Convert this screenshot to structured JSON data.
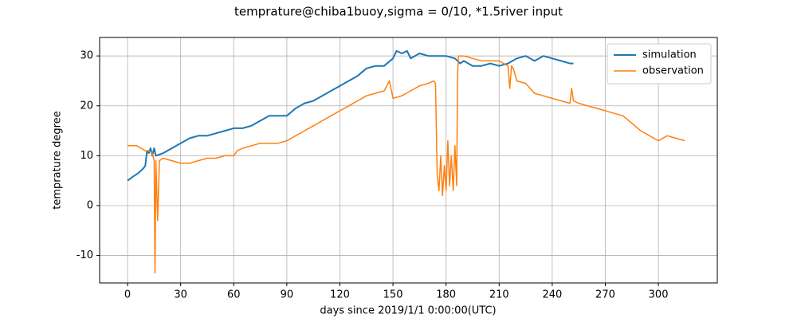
{
  "chart_data": {
    "type": "line",
    "title": "temprature@chiba1buoy,sigma = 0/10, *1.5river input",
    "x_label": "days since 2019/1/1 0:00:00(UTC)",
    "y_label": "temprature degree",
    "xlim": [
      -15.8,
      333.3
    ],
    "ylim": [
      -15.5,
      33.7
    ],
    "xticks": [
      0,
      30,
      60,
      90,
      120,
      150,
      180,
      210,
      240,
      270,
      300
    ],
    "yticks": [
      -10,
      0,
      10,
      20,
      30
    ],
    "grid": true,
    "legend": "upper right",
    "series": [
      {
        "name": "simulation",
        "color": "#1f77b4",
        "width": 2,
        "x": [
          0,
          3,
          6,
          9,
          10,
          11,
          12,
          13,
          14,
          15,
          16,
          20,
          25,
          30,
          35,
          40,
          45,
          50,
          55,
          60,
          65,
          70,
          75,
          80,
          85,
          90,
          95,
          100,
          105,
          110,
          115,
          120,
          125,
          130,
          135,
          140,
          145,
          150,
          152,
          155,
          158,
          160,
          165,
          170,
          175,
          180,
          185,
          188,
          190,
          195,
          200,
          205,
          210,
          215,
          220,
          225,
          230,
          235,
          240,
          245,
          250,
          252
        ],
        "values": [
          5,
          5.8,
          6.5,
          7.5,
          8,
          11,
          10.5,
          11.5,
          10,
          11.5,
          10,
          10.5,
          11.5,
          12.5,
          13.5,
          14,
          14,
          14.5,
          15,
          15.5,
          15.5,
          16,
          17,
          18,
          18,
          18,
          19.5,
          20.5,
          21,
          22,
          23,
          24,
          25,
          26,
          27.5,
          28,
          28,
          29.5,
          31,
          30.5,
          31,
          29.5,
          30.5,
          30,
          30,
          30,
          29.5,
          28.5,
          29,
          28,
          28,
          28.5,
          28,
          28.5,
          29.5,
          30,
          29,
          30,
          29.5,
          29,
          28.5,
          28.5
        ]
      },
      {
        "name": "observation",
        "color": "#ff7f0e",
        "width": 1.5,
        "x": [
          0,
          5,
          10,
          12,
          14,
          15,
          15.5,
          16,
          17,
          18,
          20,
          25,
          30,
          35,
          40,
          45,
          50,
          55,
          60,
          62,
          65,
          70,
          75,
          80,
          85,
          90,
          95,
          100,
          105,
          110,
          115,
          120,
          125,
          130,
          135,
          140,
          145,
          148,
          150,
          155,
          160,
          165,
          170,
          173,
          174,
          175,
          176,
          177,
          178,
          179,
          180,
          181,
          182,
          183,
          184,
          185,
          186,
          186.5,
          187,
          190,
          195,
          200,
          205,
          210,
          215,
          216,
          217,
          218,
          220,
          225,
          230,
          235,
          240,
          245,
          250,
          251,
          252,
          255,
          260,
          265,
          270,
          275,
          280,
          285,
          290,
          295,
          300,
          305,
          310,
          315
        ],
        "values": [
          12,
          12,
          11,
          11,
          10.5,
          9,
          -13.5,
          9,
          -3,
          9,
          9.5,
          9,
          8.5,
          8.5,
          9,
          9.5,
          9.5,
          10,
          10,
          11,
          11.5,
          12,
          12.5,
          12.5,
          12.5,
          13,
          14,
          15,
          16,
          17,
          18,
          19,
          20,
          21,
          22,
          22.5,
          23,
          25,
          21.5,
          22,
          23,
          24,
          24.5,
          25,
          24.5,
          6,
          3,
          10,
          2,
          8,
          3,
          13,
          4,
          10,
          3,
          12,
          4,
          26,
          30,
          30,
          29.5,
          29,
          29,
          29,
          28,
          23.5,
          28,
          27.5,
          25,
          24.5,
          22.5,
          22,
          21.5,
          21,
          20.5,
          23.5,
          21,
          20.5,
          20,
          19.5,
          19,
          18.5,
          18,
          16.5,
          15,
          14,
          13,
          14,
          13.5,
          13
        ]
      }
    ]
  }
}
